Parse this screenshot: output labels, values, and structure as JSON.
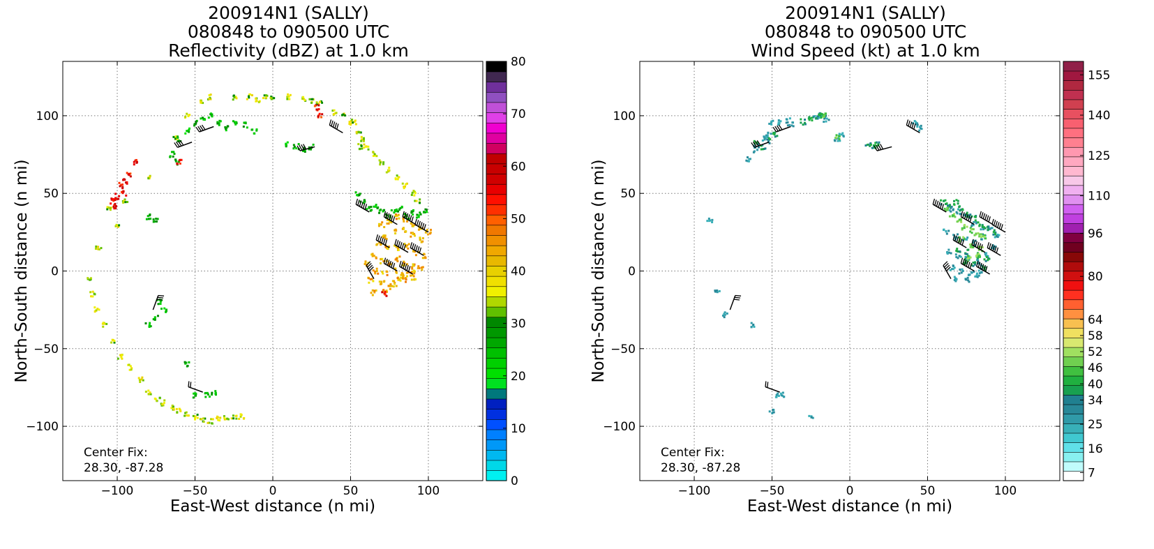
{
  "chart_data": [
    {
      "type": "heatmap",
      "title": [
        "200914N1 (SALLY)",
        "080848 to 090500 UTC",
        "Reflectivity (dBZ) at 1.0 km"
      ],
      "xlabel": "East-West distance (n mi)",
      "ylabel": "North-South distance (n mi)",
      "xlim": [
        -135,
        135
      ],
      "ylim": [
        -135,
        135
      ],
      "xticks": [
        -100,
        -50,
        0,
        50,
        100
      ],
      "yticks": [
        -100,
        -50,
        0,
        50,
        100
      ],
      "grid": true,
      "annotation": [
        "Center Fix:",
        "28.30, -87.28"
      ],
      "colorbar": {
        "min": 0,
        "max": 80,
        "tick_labels": [
          "0",
          "10",
          "20",
          "30",
          "40",
          "50",
          "60",
          "70",
          "80"
        ],
        "tick_values": [
          0,
          10,
          20,
          30,
          40,
          50,
          60,
          70,
          80
        ],
        "colors": [
          "#00f0f0",
          "#00d8e8",
          "#00b8f0",
          "#0098f8",
          "#0080ff",
          "#0050ff",
          "#0030e0",
          "#0020c0",
          "#00787c",
          "#00e020",
          "#00e000",
          "#00d000",
          "#00c000",
          "#00a800",
          "#009800",
          "#008800",
          "#60c000",
          "#b0d800",
          "#f0f000",
          "#f0e000",
          "#e8d000",
          "#e8b800",
          "#f0a800",
          "#f09000",
          "#f07800",
          "#ff6000",
          "#ff3000",
          "#ff1000",
          "#e80000",
          "#d00000",
          "#c80000",
          "#c00000",
          "#d00060",
          "#e000a0",
          "#f000d0",
          "#e040e8",
          "#c050d8",
          "#9050c0",
          "#70309c",
          "#402850",
          "#000000"
        ]
      },
      "echo_regions": [
        {
          "x": [
            -112,
            -95,
            -80,
            -62,
            -55,
            -46,
            -40,
            -25,
            -15,
            -5,
            10,
            25,
            40,
            45,
            50,
            55,
            58,
            60,
            65,
            70,
            75,
            80,
            85,
            90,
            93,
            -118,
            -116,
            -113,
            -108,
            -103,
            -98,
            -92,
            -85,
            -80,
            -74,
            -70,
            -65,
            -60,
            -55,
            -50,
            -45,
            -40,
            -35,
            -30,
            -25,
            -20,
            -10,
            0,
            20,
            30,
            52,
            56,
            -105,
            -100
          ],
          "y": [
            15,
            45,
            60,
            85,
            100,
            110,
            112,
            112,
            112,
            112,
            112,
            110,
            102,
            100,
            96,
            90,
            85,
            80,
            75,
            70,
            65,
            60,
            55,
            50,
            45,
            -5,
            -15,
            -25,
            -35,
            -45,
            -55,
            -62,
            -70,
            -78,
            -82,
            -85,
            -88,
            -90,
            -92,
            -94,
            -96,
            -97,
            -95,
            -95,
            -94,
            -94,
            110,
            112,
            111,
            108,
            96,
            80,
            40,
            30
          ],
          "value": 35
        },
        {
          "x": [
            70,
            75,
            80,
            85,
            90,
            95,
            100,
            72,
            78,
            84,
            90,
            96,
            68,
            74,
            80,
            86,
            92,
            98,
            65,
            70,
            75,
            80,
            85,
            90,
            95,
            60,
            66,
            72,
            78,
            84,
            90,
            63,
            70,
            76,
            82,
            88,
            65,
            72,
            78,
            84,
            90
          ],
          "y": [
            30,
            32,
            35,
            33,
            30,
            28,
            25,
            22,
            25,
            26,
            23,
            20,
            18,
            15,
            15,
            16,
            12,
            10,
            10,
            6,
            5,
            8,
            5,
            3,
            2,
            5,
            0,
            -2,
            0,
            -3,
            -4,
            -6,
            -8,
            -10,
            -5,
            -2,
            -14,
            -12,
            -8,
            -6,
            0
          ],
          "value": 43
        },
        {
          "x": [
            55,
            58,
            62,
            66,
            70,
            74,
            78,
            82,
            86,
            90,
            94,
            98,
            -60,
            -55,
            -50,
            -45,
            -40,
            -35,
            -30,
            -25,
            -18,
            -12,
            10,
            15,
            20,
            25,
            -65,
            -62,
            -80,
            -75,
            -73,
            -70,
            -80,
            -75,
            -55,
            -50,
            -42,
            -38
          ],
          "y": [
            50,
            45,
            40,
            42,
            38,
            36,
            38,
            40,
            35,
            38,
            36,
            38,
            85,
            90,
            95,
            98,
            100,
            95,
            92,
            96,
            94,
            90,
            82,
            80,
            78,
            80,
            75,
            70,
            35,
            32,
            -20,
            -25,
            -35,
            -30,
            -60,
            -80,
            -80,
            -78
          ],
          "value": 26
        },
        {
          "x": [
            -103,
            -100,
            -98,
            -95,
            -92,
            -89,
            -101,
            -96,
            28,
            30,
            -60,
            72
          ],
          "y": [
            45,
            48,
            55,
            58,
            62,
            70,
            42,
            50,
            105,
            100,
            70,
            -15
          ],
          "value": 55
        }
      ],
      "wind_barbs": [
        {
          "x": -38,
          "y": 93,
          "dir": 250,
          "speed": 40
        },
        {
          "x": -52,
          "y": 83,
          "dir": 250,
          "speed": 40
        },
        {
          "x": 27,
          "y": 80,
          "dir": 255,
          "speed": 40
        },
        {
          "x": 45,
          "y": 89,
          "dir": 300,
          "speed": 45
        },
        {
          "x": 62,
          "y": 38,
          "dir": 300,
          "speed": 60
        },
        {
          "x": 80,
          "y": 30,
          "dir": 300,
          "speed": 55
        },
        {
          "x": 92,
          "y": 30,
          "dir": 300,
          "speed": 60
        },
        {
          "x": 100,
          "y": 25,
          "dir": 300,
          "speed": 55
        },
        {
          "x": 75,
          "y": 15,
          "dir": 300,
          "speed": 60
        },
        {
          "x": 87,
          "y": 12,
          "dir": 300,
          "speed": 60
        },
        {
          "x": 97,
          "y": 10,
          "dir": 300,
          "speed": 55
        },
        {
          "x": 80,
          "y": 0,
          "dir": 300,
          "speed": 60
        },
        {
          "x": 90,
          "y": -2,
          "dir": 300,
          "speed": 60
        },
        {
          "x": 65,
          "y": -5,
          "dir": 330,
          "speed": 40
        },
        {
          "x": -77,
          "y": -25,
          "dir": 20,
          "speed": 30
        },
        {
          "x": -45,
          "y": -78,
          "dir": 290,
          "speed": 20
        }
      ]
    },
    {
      "type": "heatmap",
      "title": [
        "200914N1 (SALLY)",
        "080848 to 090500 UTC",
        "Wind Speed (kt) at 1.0 km"
      ],
      "xlabel": "East-West distance (n mi)",
      "ylabel": "North-South distance (n mi)",
      "xlim": [
        -135,
        135
      ],
      "ylim": [
        -135,
        135
      ],
      "xticks": [
        -100,
        -50,
        0,
        50,
        100
      ],
      "yticks": [
        -100,
        -50,
        0,
        50,
        100
      ],
      "grid": true,
      "annotation": [
        "Center Fix:",
        "28.30, -87.28"
      ],
      "colorbar": {
        "min": 4,
        "max": 160,
        "tick_labels": [
          "7",
          "16",
          "25",
          "34",
          "40",
          "46",
          "52",
          "58",
          "64",
          "80",
          "96",
          "110",
          "125",
          "140",
          "155"
        ],
        "tick_values": [
          7,
          16,
          25,
          34,
          40,
          46,
          52,
          58,
          64,
          80,
          96,
          110,
          125,
          140,
          155
        ],
        "colors": [
          "#ffffff",
          "#c0fcfc",
          "#88f0f0",
          "#60e0e8",
          "#40c8d0",
          "#38b0b8",
          "#309aa8",
          "#288898",
          "#208090",
          "#18a050",
          "#20b040",
          "#40c040",
          "#70d050",
          "#a0e060",
          "#d8e870",
          "#f0e060",
          "#f8c050",
          "#ff9040",
          "#ff6030",
          "#ff3020",
          "#f01010",
          "#d01010",
          "#b00c0c",
          "#880808",
          "#700020",
          "#800040",
          "#a020b0",
          "#c040e0",
          "#d060f0",
          "#e090f0",
          "#f0b0f0",
          "#f8c8e8",
          "#ffb8d0",
          "#ffa8c0",
          "#ff98b0",
          "#ff8090",
          "#ff7080",
          "#f86070",
          "#e85060",
          "#d04050",
          "#c03050",
          "#b02840",
          "#a01840",
          "#902048"
        ]
      },
      "echo_regions": [
        {
          "x": [
            -50,
            -45,
            -40,
            -38,
            -52,
            -55,
            -60,
            -65,
            -22,
            -18,
            -15,
            -8,
            -5,
            45,
            42,
            65,
            70,
            75,
            80,
            85,
            90,
            95,
            62,
            68,
            74,
            80,
            86,
            92,
            64,
            70,
            76,
            82,
            88,
            66,
            72,
            78,
            84,
            68,
            75,
            82,
            -85,
            -80,
            -63,
            -50,
            -47,
            -43,
            -25,
            -90
          ],
          "y": [
            95,
            96,
            97,
            94,
            88,
            85,
            78,
            72,
            98,
            100,
            97,
            85,
            88,
            92,
            95,
            40,
            38,
            35,
            30,
            28,
            26,
            22,
            25,
            22,
            20,
            18,
            22,
            15,
            12,
            10,
            8,
            6,
            10,
            2,
            0,
            -2,
            0,
            -5,
            -6,
            -3,
            -12,
            -28,
            -35,
            -90,
            -80,
            -80,
            -95,
            33
          ],
          "value": 27
        },
        {
          "x": [
            -25,
            -20,
            -17,
            -30,
            -60,
            -56,
            -52,
            -48,
            12,
            15,
            18,
            60,
            64,
            68,
            72,
            76,
            80,
            84,
            88,
            92,
            70,
            76,
            82,
            88,
            74,
            80,
            86
          ],
          "y": [
            98,
            100,
            101,
            96,
            82,
            80,
            84,
            88,
            82,
            80,
            82,
            44,
            42,
            44,
            40,
            36,
            34,
            30,
            28,
            25,
            14,
            12,
            10,
            8,
            6,
            4,
            2
          ],
          "value": 38
        },
        {
          "x": [
            62,
            66,
            70,
            74,
            78,
            82,
            86,
            72,
            78,
            84,
            76,
            82,
            -16,
            -8
          ],
          "y": [
            40,
            36,
            32,
            28,
            26,
            24,
            22,
            20,
            16,
            14,
            8,
            10,
            101,
            86
          ],
          "value": 48
        }
      ],
      "wind_barbs": [
        {
          "x": -38,
          "y": 93,
          "dir": 250,
          "speed": 40
        },
        {
          "x": -52,
          "y": 83,
          "dir": 250,
          "speed": 40
        },
        {
          "x": 27,
          "y": 80,
          "dir": 255,
          "speed": 40
        },
        {
          "x": 45,
          "y": 89,
          "dir": 300,
          "speed": 45
        },
        {
          "x": 62,
          "y": 38,
          "dir": 300,
          "speed": 60
        },
        {
          "x": 80,
          "y": 30,
          "dir": 300,
          "speed": 55
        },
        {
          "x": 92,
          "y": 30,
          "dir": 300,
          "speed": 60
        },
        {
          "x": 100,
          "y": 25,
          "dir": 300,
          "speed": 55
        },
        {
          "x": 75,
          "y": 15,
          "dir": 300,
          "speed": 60
        },
        {
          "x": 87,
          "y": 12,
          "dir": 300,
          "speed": 60
        },
        {
          "x": 97,
          "y": 10,
          "dir": 300,
          "speed": 55
        },
        {
          "x": 80,
          "y": 0,
          "dir": 300,
          "speed": 60
        },
        {
          "x": 90,
          "y": -2,
          "dir": 300,
          "speed": 60
        },
        {
          "x": 65,
          "y": -5,
          "dir": 330,
          "speed": 40
        },
        {
          "x": -77,
          "y": -25,
          "dir": 20,
          "speed": 30
        },
        {
          "x": -45,
          "y": -78,
          "dir": 290,
          "speed": 20
        }
      ]
    }
  ]
}
